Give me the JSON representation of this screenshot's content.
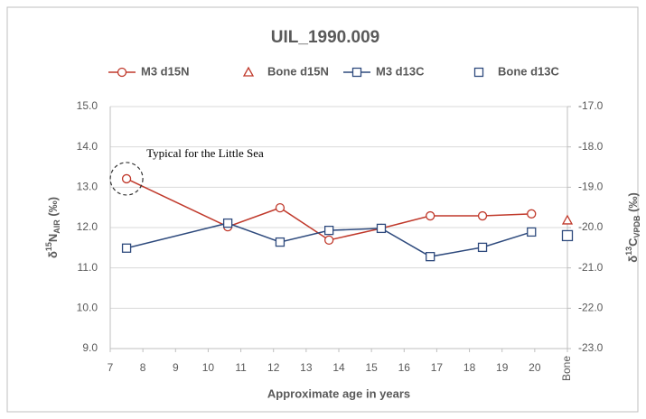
{
  "chart_data": {
    "type": "line",
    "title": "UIL_1990.009",
    "xlabel": "Approximate age in years",
    "ylabel": [
      "δ",
      "15",
      "N",
      "AIR",
      " (‰)"
    ],
    "y2label": [
      "δ",
      "13",
      "C",
      "VPDB",
      " (‰)"
    ],
    "annotation": "Typical for the Little Sea",
    "xlim": [
      7,
      21
    ],
    "xticks": [
      7,
      8,
      9,
      10,
      11,
      12,
      13,
      14,
      15,
      16,
      17,
      18,
      19,
      20,
      {
        "value": 21,
        "label": "Bone"
      }
    ],
    "ylim": [
      9,
      15
    ],
    "yticks": [
      {
        "value": 9,
        "label": "9.0"
      },
      {
        "value": 10,
        "label": "10.0"
      },
      {
        "value": 11,
        "label": "11.0"
      },
      {
        "value": 12,
        "label": "12.0"
      },
      {
        "value": 13,
        "label": "13.0"
      },
      {
        "value": 14,
        "label": "14.0"
      },
      {
        "value": 15,
        "label": "15.0"
      }
    ],
    "y2lim": [
      -23,
      -17
    ],
    "y2ticks": [
      {
        "value": -23,
        "label": "-23.0"
      },
      {
        "value": -22,
        "label": "-22.0"
      },
      {
        "value": -21,
        "label": "-21.0"
      },
      {
        "value": -20,
        "label": "-20.0"
      },
      {
        "value": -19,
        "label": "-19.0"
      },
      {
        "value": -18,
        "label": "-18.0"
      },
      {
        "value": -17,
        "label": "-17.0"
      }
    ],
    "grid": true,
    "legend": "top",
    "series": [
      {
        "name": "M3 d15N",
        "color": "#c0392b",
        "marker": "circle",
        "line": true,
        "x": [
          7.5,
          10.6,
          12.2,
          13.7,
          15.3,
          16.8,
          18.4,
          19.9
        ],
        "values": [
          13.21,
          12.02,
          12.49,
          11.69,
          11.98,
          12.29,
          12.29,
          12.34
        ]
      },
      {
        "name": "Bone d15N",
        "color": "#c0392b",
        "marker": "triangle",
        "line": false,
        "x": [
          21
        ],
        "values": [
          12.18
        ]
      },
      {
        "name": "M3 d13C",
        "color": "#2e4a7d",
        "marker": "square",
        "line": true,
        "axis": "y2",
        "x": [
          7.5,
          10.6,
          12.2,
          13.7,
          15.3,
          16.8,
          18.4,
          19.9
        ],
        "values": [
          -20.51,
          -19.89,
          -20.36,
          -20.07,
          -20.02,
          -20.72,
          -20.49,
          -20.11
        ]
      },
      {
        "name": "Bone d13C",
        "color": "#2e4a7d",
        "marker": "square",
        "line": false,
        "axis": "y2",
        "x": [
          21
        ],
        "values": [
          -20.2
        ]
      }
    ]
  }
}
